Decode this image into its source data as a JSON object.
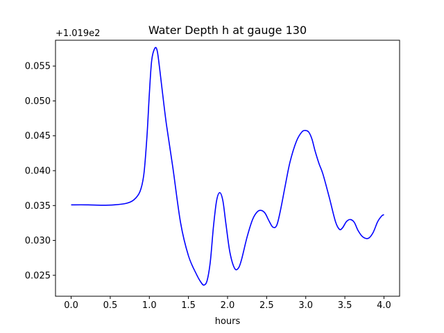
{
  "chart_data": {
    "type": "line",
    "title": "Water Depth h at gauge 130",
    "xlabel": "hours",
    "ylabel": "",
    "y_offset_label": "+1.019e2",
    "xlim": [
      -0.2,
      4.2
    ],
    "ylim": [
      0.022,
      0.0587
    ],
    "grid": false,
    "x_ticks": [
      0.0,
      0.5,
      1.0,
      1.5,
      2.0,
      2.5,
      3.0,
      3.5,
      4.0
    ],
    "x_tick_labels": [
      "0.0",
      "0.5",
      "1.0",
      "1.5",
      "2.0",
      "2.5",
      "3.0",
      "3.5",
      "4.0"
    ],
    "y_ticks": [
      0.025,
      0.03,
      0.035,
      0.04,
      0.045,
      0.05,
      0.055
    ],
    "y_tick_labels": [
      "0.025",
      "0.030",
      "0.035",
      "0.040",
      "0.045",
      "0.050",
      "0.055"
    ],
    "series": [
      {
        "color": "#0000ff",
        "x": [
          0.0,
          0.2,
          0.4,
          0.55,
          0.7,
          0.8,
          0.88,
          0.93,
          0.97,
          1.0,
          1.03,
          1.07,
          1.1,
          1.13,
          1.17,
          1.22,
          1.3,
          1.4,
          1.5,
          1.6,
          1.66,
          1.7,
          1.74,
          1.78,
          1.82,
          1.86,
          1.9,
          1.94,
          1.98,
          2.03,
          2.09,
          2.14,
          2.18,
          2.25,
          2.32,
          2.38,
          2.43,
          2.48,
          2.53,
          2.58,
          2.63,
          2.68,
          2.74,
          2.8,
          2.88,
          2.95,
          3.0,
          3.04,
          3.08,
          3.12,
          3.17,
          3.22,
          3.3,
          3.38,
          3.43,
          3.47,
          3.52,
          3.57,
          3.62,
          3.67,
          3.73,
          3.8,
          3.86,
          3.92,
          3.97,
          4.0
        ],
        "y": [
          0.0351,
          0.0351,
          0.03505,
          0.0351,
          0.0353,
          0.0358,
          0.037,
          0.0395,
          0.045,
          0.051,
          0.0558,
          0.05755,
          0.0572,
          0.0548,
          0.051,
          0.0465,
          0.0405,
          0.0325,
          0.0278,
          0.0252,
          0.024,
          0.0236,
          0.0243,
          0.027,
          0.032,
          0.0357,
          0.03685,
          0.0357,
          0.0323,
          0.0283,
          0.026,
          0.02605,
          0.0273,
          0.0305,
          0.033,
          0.0341,
          0.0343,
          0.0339,
          0.0328,
          0.0319,
          0.0322,
          0.0345,
          0.038,
          0.0413,
          0.0442,
          0.04555,
          0.04575,
          0.0455,
          0.0445,
          0.0428,
          0.041,
          0.0395,
          0.0362,
          0.0327,
          0.0316,
          0.0318,
          0.0327,
          0.033,
          0.0326,
          0.0314,
          0.0305,
          0.0303,
          0.0311,
          0.0327,
          0.0335,
          0.0337
        ]
      }
    ]
  }
}
